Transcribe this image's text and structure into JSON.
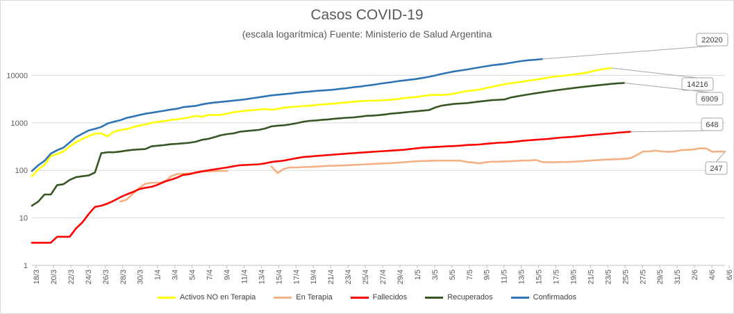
{
  "chart_data": {
    "type": "line",
    "title": "Casos COVID-19",
    "subtitle": "(escala logarítmica) Fuente: Ministerio de Salud Argentina",
    "y_scale": "log",
    "ylim": [
      1,
      100000
    ],
    "y_ticks": [
      "1",
      "10",
      "100",
      "1000",
      "10000"
    ],
    "x_tick_labels": [
      "18/3",
      "20/3",
      "22/3",
      "24/3",
      "26/3",
      "28/3",
      "30/3",
      "1/4",
      "3/4",
      "5/4",
      "7/4",
      "9/4",
      "11/4",
      "13/4",
      "15/4",
      "17/4",
      "19/4",
      "21/4",
      "23/4",
      "25/4",
      "27/4",
      "29/4",
      "1/5",
      "3/5",
      "5/5",
      "7/5",
      "9/5",
      "11/5",
      "13/5",
      "15/5",
      "17/5",
      "19/5",
      "21/5",
      "23/5",
      "25/5",
      "27/5",
      "29/5",
      "31/5",
      "2/6",
      "4/6",
      "6/6"
    ],
    "legend_position": "bottom",
    "series": [
      {
        "name": "Activos NO en Terapia",
        "color": "#ffff00",
        "values": [
          75,
          105,
          130,
          200,
          220,
          250,
          320,
          390,
          460,
          530,
          590,
          600,
          520,
          650,
          700,
          740,
          800,
          880,
          920,
          1000,
          1050,
          1080,
          1150,
          1180,
          1240,
          1300,
          1400,
          1340,
          1470,
          1460,
          1480,
          1560,
          1680,
          1730,
          1800,
          1840,
          1900,
          1950,
          1880,
          1960,
          2080,
          2150,
          2200,
          2240,
          2290,
          2360,
          2420,
          2480,
          2550,
          2620,
          2700,
          2780,
          2850,
          2900,
          2920,
          2960,
          3000,
          3080,
          3150,
          3300,
          3400,
          3500,
          3650,
          3800,
          3900,
          3850,
          3950,
          4100,
          4400,
          4650,
          4800,
          5000,
          5350,
          5700,
          6100,
          6500,
          6800,
          7100,
          7400,
          7800,
          8100,
          8500,
          9000,
          9400,
          9700,
          10000,
          10400,
          10800,
          11300,
          12200,
          13000,
          13700,
          14216
        ]
      },
      {
        "name": "En Terapia",
        "color": "#f4b183",
        "values": [
          null,
          null,
          null,
          null,
          null,
          null,
          null,
          null,
          null,
          null,
          null,
          null,
          null,
          null,
          22,
          24,
          32,
          42,
          52,
          55,
          55,
          55,
          74,
          83,
          85,
          86,
          88,
          94,
          95,
          96,
          97,
          97,
          null,
          null,
          null,
          null,
          null,
          null,
          120,
          88,
          108,
          115,
          115,
          117,
          118,
          120,
          122,
          124,
          125,
          126,
          128,
          130,
          132,
          134,
          136,
          138,
          140,
          142,
          145,
          148,
          152,
          155,
          157,
          158,
          160,
          160,
          160,
          160,
          160,
          150,
          147,
          140,
          148,
          152,
          152,
          154,
          156,
          158,
          160,
          162,
          165,
          150,
          148,
          148,
          150,
          150,
          152,
          155,
          158,
          162,
          165,
          168,
          170,
          172,
          175,
          180,
          210,
          250,
          250,
          260,
          250,
          245,
          250,
          265,
          270,
          275,
          290,
          290,
          245,
          250,
          247
        ]
      },
      {
        "name": "Fallecidos",
        "color": "#ff0000",
        "values": [
          3,
          3,
          3,
          3,
          4,
          4,
          4,
          6,
          8,
          12,
          17,
          18,
          20,
          23,
          27,
          31,
          35,
          40,
          43,
          45,
          50,
          58,
          63,
          70,
          80,
          83,
          90,
          95,
          100,
          105,
          110,
          115,
          122,
          128,
          130,
          132,
          134,
          140,
          150,
          155,
          160,
          170,
          180,
          190,
          195,
          200,
          205,
          210,
          215,
          220,
          225,
          230,
          235,
          240,
          245,
          250,
          255,
          260,
          265,
          270,
          280,
          290,
          300,
          305,
          310,
          315,
          320,
          325,
          330,
          340,
          345,
          350,
          360,
          370,
          380,
          385,
          395,
          405,
          420,
          430,
          440,
          450,
          460,
          475,
          490,
          500,
          510,
          525,
          540,
          555,
          570,
          585,
          600,
          620,
          635,
          648
        ]
      },
      {
        "name": "Recuperados",
        "color": "#375623",
        "values": [
          18,
          22,
          31,
          31,
          49,
          51,
          63,
          72,
          75,
          78,
          90,
          230,
          240,
          240,
          248,
          260,
          270,
          275,
          280,
          320,
          330,
          340,
          355,
          360,
          370,
          380,
          400,
          440,
          460,
          500,
          550,
          580,
          600,
          650,
          670,
          690,
          710,
          760,
          840,
          870,
          890,
          930,
          980,
          1050,
          1100,
          1120,
          1150,
          1180,
          1220,
          1250,
          1280,
          1300,
          1340,
          1400,
          1420,
          1450,
          1500,
          1560,
          1600,
          1650,
          1700,
          1750,
          1800,
          1850,
          2100,
          2300,
          2400,
          2500,
          2550,
          2600,
          2700,
          2800,
          2900,
          3000,
          3050,
          3100,
          3400,
          3600,
          3800,
          4000,
          4200,
          4400,
          4600,
          4800,
          5000,
          5200,
          5400,
          5600,
          5800,
          6000,
          6200,
          6400,
          6600,
          6800,
          6909
        ]
      },
      {
        "name": "Confirmados",
        "color": "#2e75b6",
        "values": [
          97,
          128,
          158,
          225,
          265,
          301,
          387,
          502,
          589,
          690,
          745,
          820,
          966,
          1054,
          1133,
          1265,
          1353,
          1451,
          1554,
          1628,
          1715,
          1795,
          1894,
          1975,
          2142,
          2208,
          2277,
          2443,
          2571,
          2669,
          2758,
          2839,
          2941,
          3031,
          3144,
          3288,
          3435,
          3607,
          3780,
          3892,
          4003,
          4127,
          4285,
          4428,
          4532,
          4681,
          4783,
          4887,
          5020,
          5208,
          5371,
          5611,
          5776,
          6034,
          6265,
          6563,
          6879,
          7134,
          7479,
          7805,
          8068,
          8371,
          8796,
          9283,
          9931,
          10649,
          11353,
          12076,
          12628,
          13228,
          13933,
          14702,
          15419,
          16214,
          16851,
          17415,
          18319,
          19268,
          20197,
          20820,
          21304,
          22020
        ]
      }
    ],
    "end_labels": [
      {
        "series": "Confirmados",
        "label": "22020"
      },
      {
        "series": "Activos NO en Terapia",
        "label": "14216"
      },
      {
        "series": "Recuperados",
        "label": "6909"
      },
      {
        "series": "Fallecidos",
        "label": "648"
      },
      {
        "series": "En Terapia",
        "label": "247"
      }
    ]
  }
}
